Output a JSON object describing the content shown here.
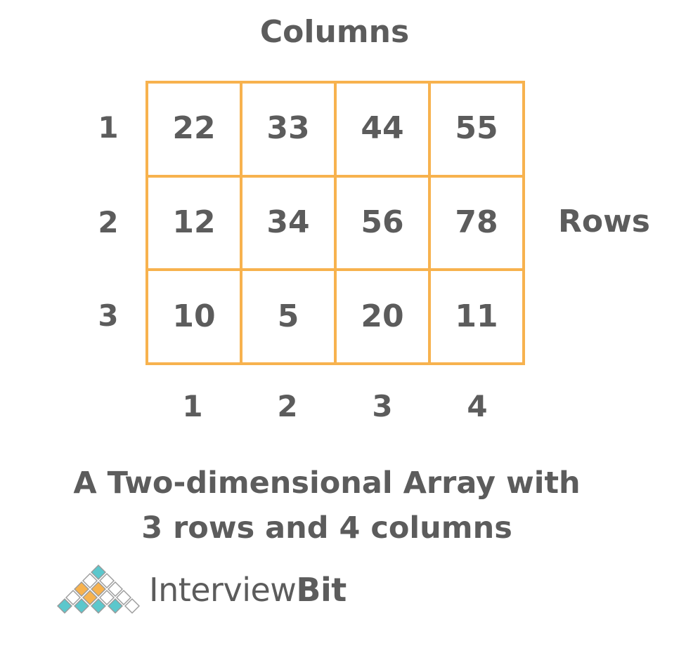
{
  "headings": {
    "columns": "Columns",
    "rows": "Rows"
  },
  "row_labels": [
    "1",
    "2",
    "3"
  ],
  "column_labels": [
    "1",
    "2",
    "3",
    "4"
  ],
  "array": [
    [
      "22",
      "33",
      "44",
      "55"
    ],
    [
      "12",
      "34",
      "56",
      "78"
    ],
    [
      "10",
      "5",
      "20",
      "11"
    ]
  ],
  "caption": {
    "line1": "A Two-dimensional Array with",
    "line2": "3 rows and 4 columns"
  },
  "brand": {
    "name_part1": "Interview",
    "name_part2": "Bit"
  },
  "colors": {
    "grid_border": "#f7b24e",
    "text": "#5c5c5c",
    "logo_orange": "#f7b24e",
    "logo_teal": "#5cc7cc"
  }
}
